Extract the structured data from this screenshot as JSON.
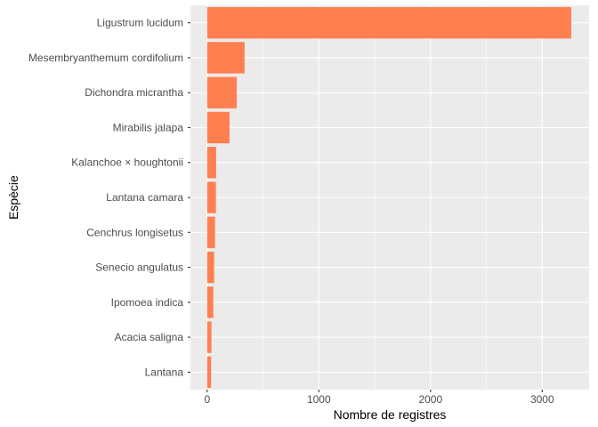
{
  "chart_data": {
    "type": "bar",
    "orientation": "horizontal",
    "categories": [
      "Lantana",
      "Acacia saligna",
      "Ipomoea indica",
      "Senecio angulatus",
      "Cenchrus longisetus",
      "Lantana camara",
      "Kalanchoe × houghtonii",
      "Mirabilis jalapa",
      "Dichondra micrantha",
      "Mesembryanthemum cordifolium",
      "Ligustrum lucidum"
    ],
    "values": [
      35,
      38,
      55,
      62,
      70,
      78,
      80,
      200,
      265,
      335,
      3260
    ],
    "xlabel": "Nombre de registres",
    "ylabel": "Espècie",
    "xlim": [
      -150,
      3420
    ],
    "xticks": [
      0,
      1000,
      2000,
      3000
    ],
    "xtick_labels": [
      "0",
      "1000",
      "2000",
      "3000"
    ],
    "grid": true,
    "legend": "none",
    "bar_color": "#ff7f50",
    "panel_background": "#ebebeb",
    "grid_color": "#ffffff"
  }
}
